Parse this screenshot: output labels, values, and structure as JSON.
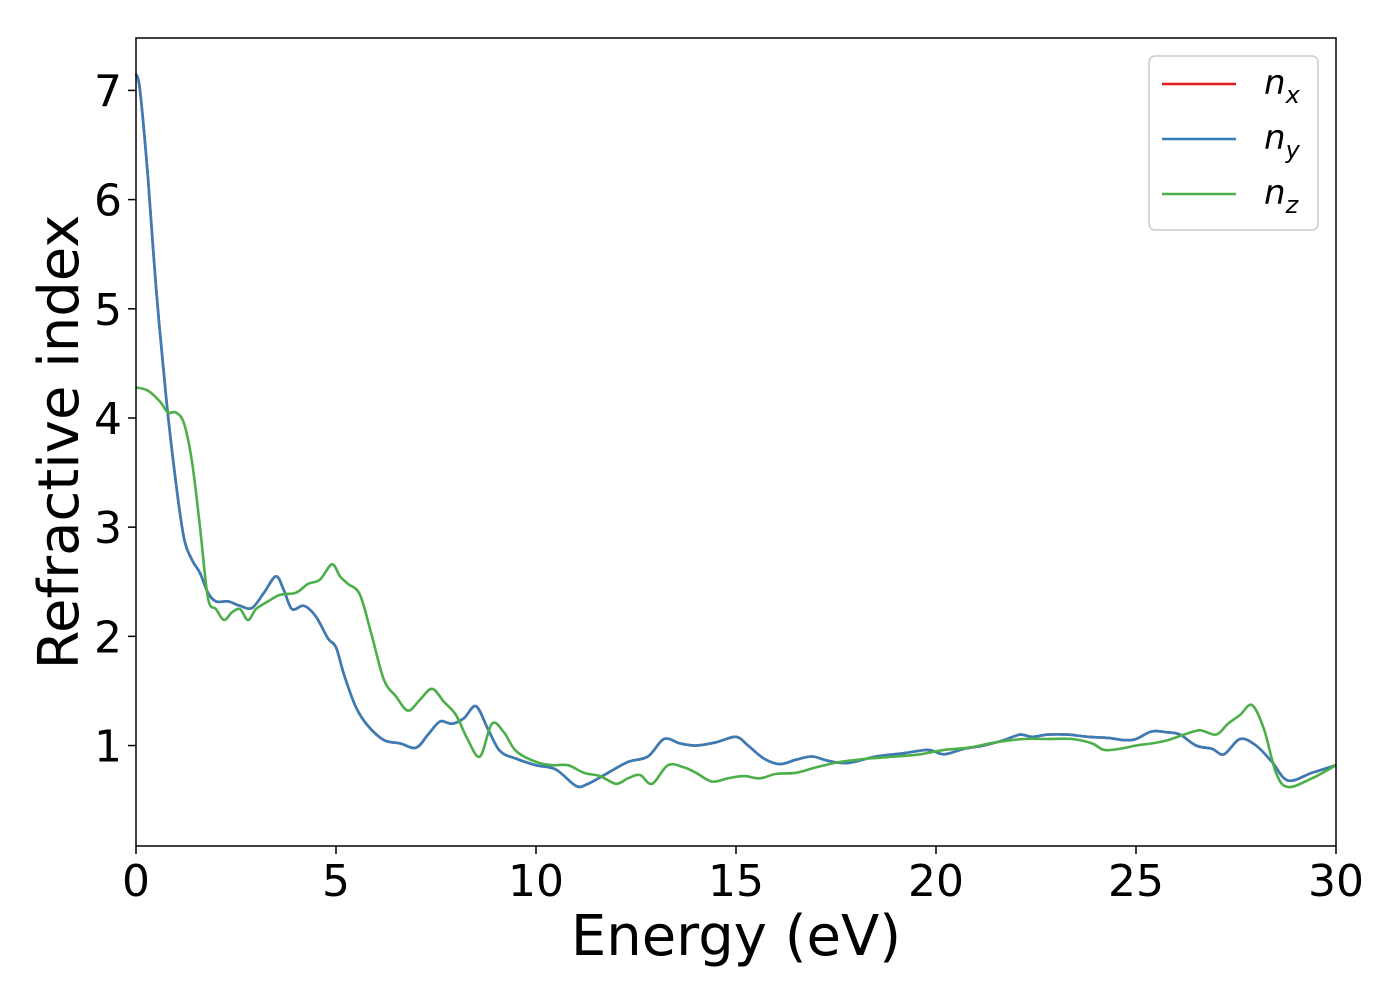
{
  "chart_data": {
    "type": "line",
    "title": "",
    "xlabel": "Energy (eV)",
    "ylabel": "Refractive index",
    "xlim": [
      0,
      30
    ],
    "ylim": [
      0.08,
      7.48
    ],
    "xticks": [
      "0",
      "5",
      "10",
      "15",
      "20",
      "25",
      "30"
    ],
    "yticks": [
      "1",
      "2",
      "3",
      "4",
      "5",
      "6",
      "7"
    ],
    "grid": false,
    "legend_position": "top-right",
    "series": [
      {
        "name": "n_x",
        "legend_base": "n",
        "legend_sub": "x",
        "color": "#e41a1c",
        "x": [
          0,
          0.1,
          0.3,
          0.5,
          0.75,
          1.0,
          1.2,
          1.4,
          1.6,
          1.8,
          2.0,
          2.3,
          2.6,
          2.9,
          3.2,
          3.5,
          3.7,
          3.9,
          4.2,
          4.5,
          4.8,
          5.0,
          5.2,
          5.5,
          5.8,
          6.2,
          6.6,
          7.0,
          7.3,
          7.6,
          7.9,
          8.2,
          8.5,
          8.8,
          9.1,
          9.5,
          10.0,
          10.5,
          11.0,
          11.3,
          11.8,
          12.3,
          12.8,
          13.2,
          13.6,
          14.0,
          14.5,
          15.0,
          15.3,
          15.7,
          16.1,
          16.5,
          16.9,
          17.3,
          17.8,
          18.5,
          19.2,
          19.8,
          20.2,
          20.7,
          21.2,
          21.7,
          22.1,
          22.4,
          22.8,
          23.3,
          23.8,
          24.3,
          24.7,
          25.0,
          25.4,
          25.8,
          26.1,
          26.5,
          26.9,
          27.2,
          27.6,
          28.0,
          28.4,
          28.8,
          29.4,
          30.0
        ],
        "y": [
          7.15,
          7.0,
          6.2,
          5.2,
          4.2,
          3.4,
          2.9,
          2.7,
          2.58,
          2.4,
          2.32,
          2.32,
          2.28,
          2.26,
          2.4,
          2.55,
          2.42,
          2.25,
          2.28,
          2.18,
          1.98,
          1.9,
          1.65,
          1.35,
          1.18,
          1.05,
          1.02,
          0.98,
          1.1,
          1.22,
          1.2,
          1.25,
          1.36,
          1.15,
          0.95,
          0.88,
          0.82,
          0.78,
          0.63,
          0.65,
          0.75,
          0.85,
          0.9,
          1.06,
          1.02,
          1.0,
          1.03,
          1.08,
          1.0,
          0.88,
          0.83,
          0.87,
          0.9,
          0.86,
          0.84,
          0.9,
          0.93,
          0.96,
          0.92,
          0.97,
          1.0,
          1.05,
          1.1,
          1.08,
          1.1,
          1.1,
          1.08,
          1.07,
          1.05,
          1.06,
          1.13,
          1.12,
          1.1,
          1.0,
          0.97,
          0.92,
          1.06,
          1.0,
          0.85,
          0.68,
          0.75,
          0.82
        ]
      },
      {
        "name": "n_y",
        "legend_base": "n",
        "legend_sub": "y",
        "color": "#377eb8",
        "x": [
          0,
          0.1,
          0.3,
          0.5,
          0.75,
          1.0,
          1.2,
          1.4,
          1.6,
          1.8,
          2.0,
          2.3,
          2.6,
          2.9,
          3.2,
          3.5,
          3.7,
          3.9,
          4.2,
          4.5,
          4.8,
          5.0,
          5.2,
          5.5,
          5.8,
          6.2,
          6.6,
          7.0,
          7.3,
          7.6,
          7.9,
          8.2,
          8.5,
          8.8,
          9.1,
          9.5,
          10.0,
          10.5,
          11.0,
          11.3,
          11.8,
          12.3,
          12.8,
          13.2,
          13.6,
          14.0,
          14.5,
          15.0,
          15.3,
          15.7,
          16.1,
          16.5,
          16.9,
          17.3,
          17.8,
          18.5,
          19.2,
          19.8,
          20.2,
          20.7,
          21.2,
          21.7,
          22.1,
          22.4,
          22.8,
          23.3,
          23.8,
          24.3,
          24.7,
          25.0,
          25.4,
          25.8,
          26.1,
          26.5,
          26.9,
          27.2,
          27.6,
          28.0,
          28.4,
          28.8,
          29.4,
          30.0
        ],
        "y": [
          7.15,
          7.0,
          6.2,
          5.2,
          4.2,
          3.4,
          2.9,
          2.7,
          2.58,
          2.4,
          2.32,
          2.32,
          2.28,
          2.26,
          2.4,
          2.55,
          2.42,
          2.25,
          2.28,
          2.18,
          1.98,
          1.9,
          1.65,
          1.35,
          1.18,
          1.05,
          1.02,
          0.98,
          1.1,
          1.22,
          1.2,
          1.25,
          1.36,
          1.15,
          0.95,
          0.88,
          0.82,
          0.78,
          0.63,
          0.65,
          0.75,
          0.85,
          0.9,
          1.06,
          1.02,
          1.0,
          1.03,
          1.08,
          1.0,
          0.88,
          0.83,
          0.87,
          0.9,
          0.86,
          0.84,
          0.9,
          0.93,
          0.96,
          0.92,
          0.97,
          1.0,
          1.05,
          1.1,
          1.08,
          1.1,
          1.1,
          1.08,
          1.07,
          1.05,
          1.06,
          1.13,
          1.12,
          1.1,
          1.0,
          0.97,
          0.92,
          1.06,
          1.0,
          0.85,
          0.68,
          0.75,
          0.82
        ]
      },
      {
        "name": "n_z",
        "legend_base": "n",
        "legend_sub": "z",
        "color": "#4daf4a",
        "x": [
          0,
          0.3,
          0.6,
          0.8,
          1.0,
          1.2,
          1.4,
          1.6,
          1.8,
          2.0,
          2.2,
          2.4,
          2.6,
          2.8,
          3.0,
          3.3,
          3.6,
          4.0,
          4.3,
          4.6,
          4.9,
          5.1,
          5.3,
          5.6,
          5.9,
          6.2,
          6.5,
          6.8,
          7.1,
          7.4,
          7.7,
          8.0,
          8.3,
          8.6,
          8.9,
          9.2,
          9.5,
          10.0,
          10.4,
          10.8,
          11.2,
          11.6,
          12.0,
          12.3,
          12.6,
          12.9,
          13.3,
          13.7,
          14.0,
          14.4,
          14.8,
          15.2,
          15.6,
          16.0,
          16.5,
          17.0,
          17.6,
          18.3,
          19.0,
          19.6,
          20.2,
          20.8,
          21.5,
          22.2,
          22.8,
          23.4,
          23.9,
          24.2,
          24.6,
          25.0,
          25.4,
          25.8,
          26.2,
          26.6,
          27.0,
          27.3,
          27.6,
          27.9,
          28.2,
          28.5,
          28.8,
          29.4,
          30.0
        ],
        "y": [
          4.28,
          4.25,
          4.15,
          4.05,
          4.05,
          3.95,
          3.6,
          3.0,
          2.35,
          2.25,
          2.15,
          2.22,
          2.25,
          2.15,
          2.25,
          2.32,
          2.38,
          2.4,
          2.48,
          2.52,
          2.66,
          2.55,
          2.48,
          2.38,
          2.0,
          1.6,
          1.45,
          1.32,
          1.42,
          1.52,
          1.4,
          1.28,
          1.05,
          0.9,
          1.2,
          1.12,
          0.95,
          0.85,
          0.82,
          0.82,
          0.75,
          0.72,
          0.65,
          0.7,
          0.73,
          0.65,
          0.82,
          0.8,
          0.75,
          0.67,
          0.7,
          0.72,
          0.7,
          0.74,
          0.75,
          0.8,
          0.85,
          0.88,
          0.9,
          0.92,
          0.96,
          0.98,
          1.03,
          1.06,
          1.06,
          1.06,
          1.02,
          0.96,
          0.97,
          1.0,
          1.02,
          1.05,
          1.1,
          1.14,
          1.1,
          1.2,
          1.28,
          1.37,
          1.15,
          0.75,
          0.62,
          0.7,
          0.82
        ]
      }
    ]
  }
}
